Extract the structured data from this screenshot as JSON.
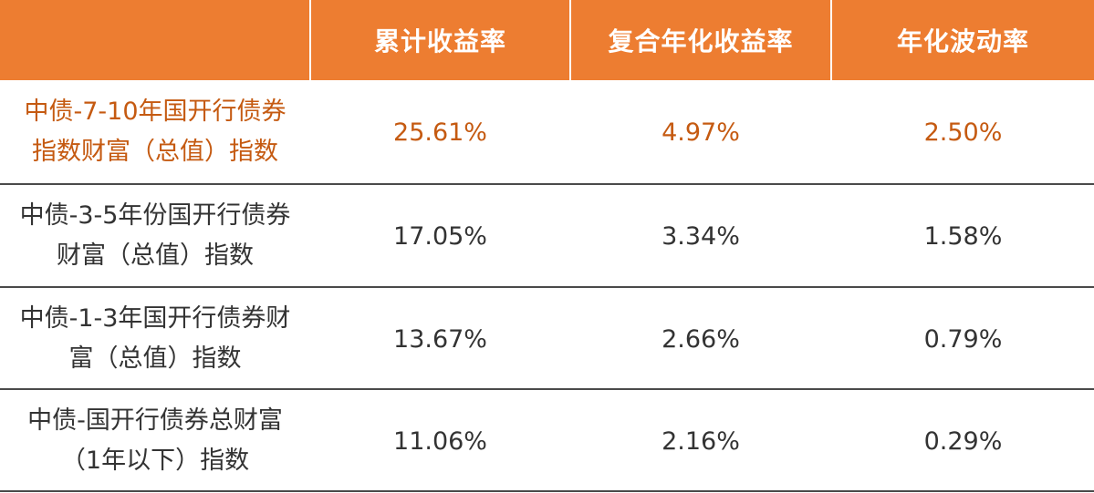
{
  "colors": {
    "header_bg": "#ED7D31",
    "header_text": "#FFFFFF",
    "highlight_text": "#C55A11",
    "body_text": "#333333",
    "row_divider": "#4A4A4A"
  },
  "headers": {
    "index": "",
    "cumulative_return": "累计收益率",
    "annualized_return": "复合年化收益率",
    "annualized_volatility": "年化波动率"
  },
  "rows": [
    {
      "name": "中债-7-10年国开行债券指数财富（总值）指数",
      "cumulative_return": "25.61%",
      "annualized_return": "4.97%",
      "annualized_volatility": "2.50%",
      "highlighted": true
    },
    {
      "name": "中债-3-5年份国开行债券财富（总值）指数",
      "cumulative_return": "17.05%",
      "annualized_return": "3.34%",
      "annualized_volatility": "1.58%",
      "highlighted": false
    },
    {
      "name": "中债-1-3年国开行债券财富（总值）指数",
      "cumulative_return": "13.67%",
      "annualized_return": "2.66%",
      "annualized_volatility": "0.79%",
      "highlighted": false
    },
    {
      "name": "中债-国开行债券总财富（1年以下）指数",
      "cumulative_return": "11.06%",
      "annualized_return": "2.16%",
      "annualized_volatility": "0.29%",
      "highlighted": false
    }
  ]
}
